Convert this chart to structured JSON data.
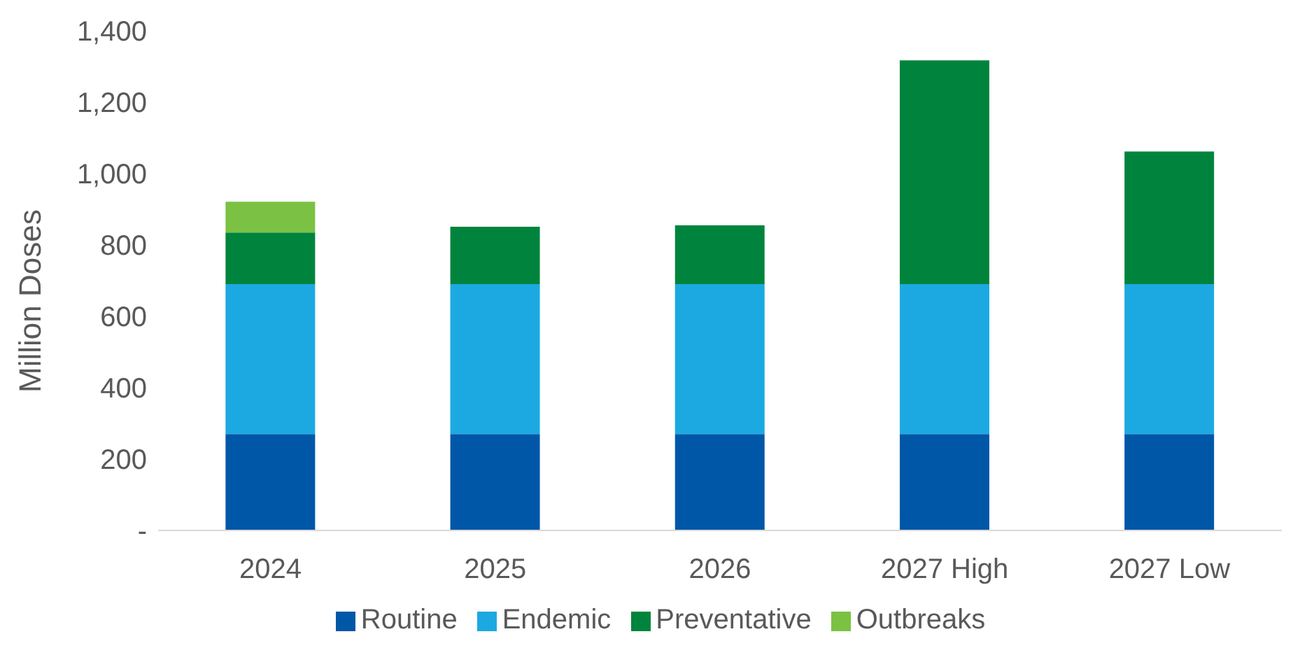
{
  "chart_data": {
    "type": "bar",
    "stacked": true,
    "ylabel": "Million Doses",
    "categories": [
      "2024",
      "2025",
      "2026",
      "2027 High",
      "2027 Low"
    ],
    "series": [
      {
        "name": "Routine",
        "color": "#0057a8",
        "values": [
          270,
          270,
          270,
          270,
          270
        ]
      },
      {
        "name": "Endemic",
        "color": "#1ca9e1",
        "values": [
          420,
          420,
          420,
          420,
          420
        ]
      },
      {
        "name": "Preventative",
        "color": "#00843d",
        "values": [
          145,
          161,
          165,
          627,
          372
        ]
      },
      {
        "name": "Outbreaks",
        "color": "#7bc143",
        "values": [
          86,
          null,
          null,
          null,
          null
        ]
      }
    ],
    "ylim": [
      0,
      1400
    ],
    "yticks": [
      {
        "value": 0,
        "label": "-"
      },
      {
        "value": 200,
        "label": "200"
      },
      {
        "value": 400,
        "label": "400"
      },
      {
        "value": 600,
        "label": "600"
      },
      {
        "value": 800,
        "label": "800"
      },
      {
        "value": 1000,
        "label": "1,000"
      },
      {
        "value": 1200,
        "label": "1,200"
      },
      {
        "value": 1400,
        "label": "1,400"
      }
    ],
    "grid": false,
    "legend": "bottom"
  }
}
